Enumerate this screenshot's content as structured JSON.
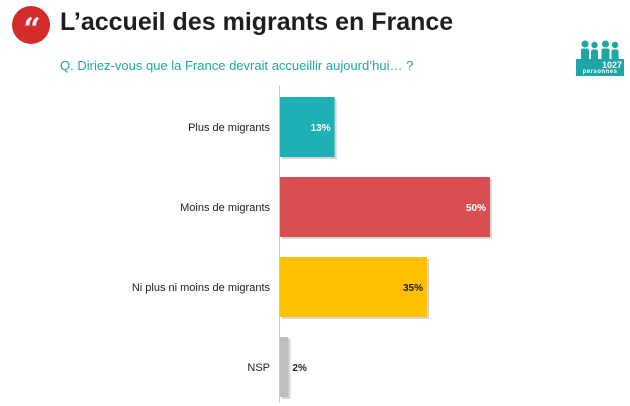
{
  "header": {
    "quote_mark": "“",
    "title": "L’accueil des migrants en France",
    "question": "Q. Diriez-vous que la France devrait accueillir aujourd’hui… ?"
  },
  "sample": {
    "count": "1027",
    "unit": "personnes"
  },
  "colors": {
    "accent": "#d42b2b",
    "teal": "#1eb0b4",
    "red": "#d94f51",
    "yellow": "#ffc000",
    "grey": "#bfbfbf"
  },
  "chart_data": {
    "type": "bar",
    "orientation": "horizontal",
    "categories": [
      "Plus de migrants",
      "Moins de migrants",
      "Ni plus ni moins de migrants",
      "NSP"
    ],
    "values": [
      13,
      50,
      35,
      2
    ],
    "value_labels": [
      "13%",
      "50%",
      "35%",
      "2%"
    ],
    "bar_colors": [
      "#1eb0b4",
      "#d94f51",
      "#ffc000",
      "#bfbfbf"
    ],
    "unit": "%",
    "xlim": [
      0,
      50
    ],
    "grid": false,
    "legend": "none"
  }
}
